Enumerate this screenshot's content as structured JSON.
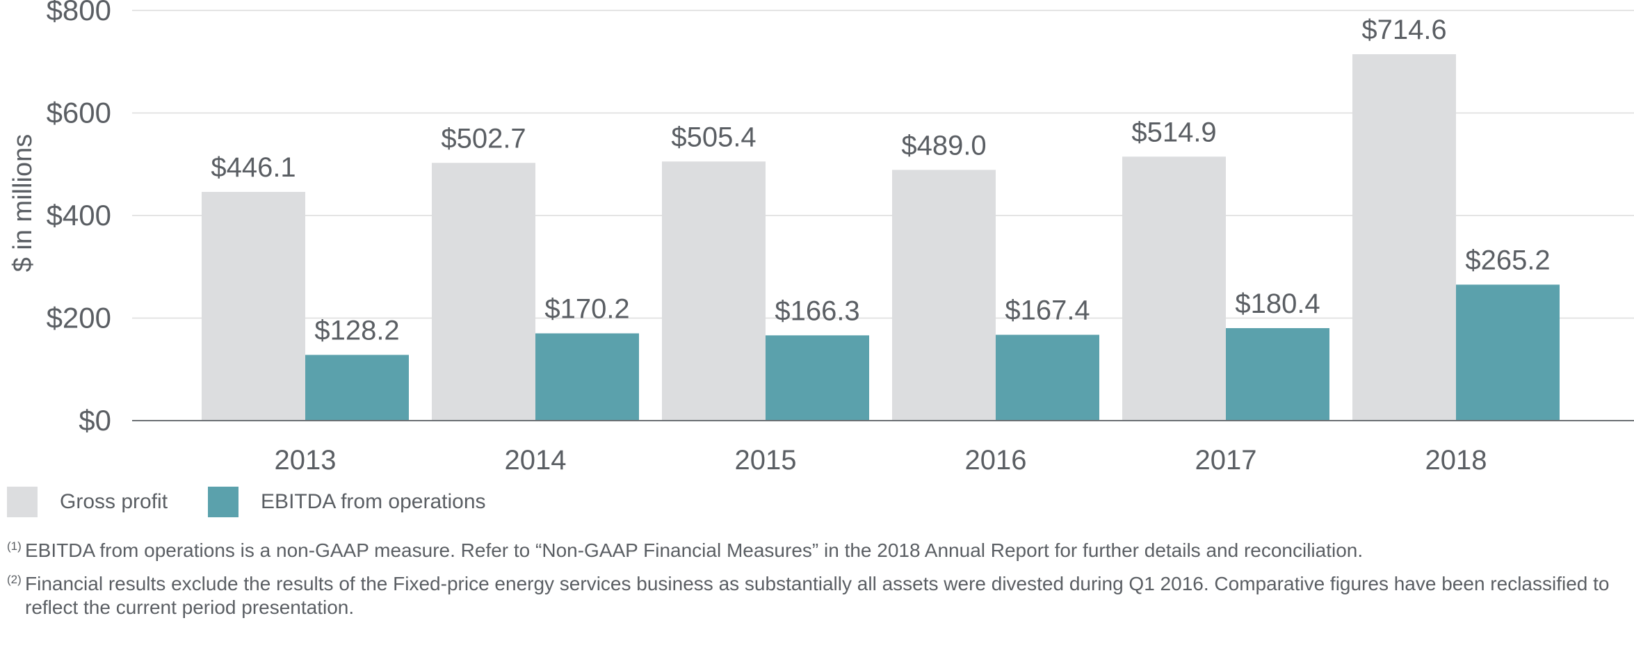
{
  "chart_data": {
    "type": "bar",
    "categories": [
      "2013",
      "2014",
      "2015",
      "2016",
      "2017",
      "2018"
    ],
    "series": [
      {
        "name": "Gross profit",
        "color": "#dcdddf",
        "values": [
          446.1,
          502.7,
          505.4,
          489.0,
          514.9,
          714.6
        ],
        "labels": [
          "$446.1",
          "$502.7",
          "$505.4",
          "$489.0",
          "$514.9",
          "$714.6"
        ]
      },
      {
        "name": "EBITDA from operations",
        "color": "#5ba1ac",
        "values": [
          128.2,
          170.2,
          166.3,
          167.4,
          180.4,
          265.2
        ],
        "labels": [
          "$128.2",
          "$170.2",
          "$166.3",
          "$167.4",
          "$180.4",
          "$265.2"
        ]
      }
    ],
    "ylabel": "$ in millions",
    "ylim": [
      0,
      800
    ],
    "yticks": [
      0,
      200,
      400,
      600,
      800
    ],
    "ytick_labels": [
      "$0",
      "$200",
      "$400",
      "$600",
      "$800"
    ],
    "grid": true,
    "legend_position": "bottom-left"
  },
  "legend": {
    "gross": "Gross profit",
    "ebitda": "EBITDA from operations"
  },
  "notes": [
    {
      "marker": "(1)",
      "text": "EBITDA from operations is a non-GAAP measure. Refer to “Non-GAAP Financial Measures” in the 2018 Annual Report for further details and reconciliation."
    },
    {
      "marker": "(2)",
      "text": "Financial results exclude the results of the Fixed-price energy services business as substantially all assets were divested during Q1 2016. Comparative figures have been reclassified to reflect the current period presentation."
    }
  ]
}
